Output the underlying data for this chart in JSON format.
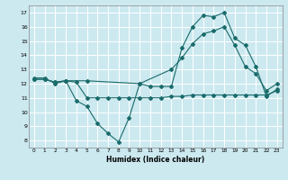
{
  "xlabel": "Humidex (Indice chaleur)",
  "bg_color": "#cce9f0",
  "line_color": "#1a6b6b",
  "grid_color": "#ffffff",
  "xlim": [
    -0.5,
    23.5
  ],
  "ylim": [
    7.5,
    17.5
  ],
  "yticks": [
    8,
    9,
    10,
    11,
    12,
    13,
    14,
    15,
    16,
    17
  ],
  "xticks": [
    0,
    1,
    2,
    3,
    4,
    5,
    6,
    7,
    8,
    9,
    10,
    11,
    12,
    13,
    14,
    15,
    16,
    17,
    18,
    19,
    20,
    21,
    22,
    23
  ],
  "line1_x": [
    0,
    1,
    2,
    3,
    4,
    5,
    6,
    7,
    8,
    9,
    10,
    11,
    12,
    13,
    14,
    15,
    16,
    17,
    18,
    19,
    20,
    21,
    22,
    23
  ],
  "line1_y": [
    12.4,
    12.4,
    12.0,
    12.2,
    10.8,
    10.4,
    9.2,
    8.5,
    7.9,
    9.6,
    12.0,
    11.8,
    11.8,
    11.8,
    14.5,
    16.0,
    16.8,
    16.7,
    17.0,
    15.2,
    14.7,
    13.2,
    11.1,
    11.6
  ],
  "line2_x": [
    0,
    1,
    2,
    3,
    4,
    5,
    6,
    7,
    8,
    9,
    10,
    11,
    12,
    13,
    14,
    15,
    16,
    17,
    18,
    19,
    20,
    21,
    22,
    23
  ],
  "line2_y": [
    12.3,
    12.3,
    12.1,
    12.2,
    12.1,
    11.0,
    11.0,
    11.0,
    11.0,
    11.0,
    11.0,
    11.0,
    11.0,
    11.1,
    11.1,
    11.2,
    11.2,
    11.2,
    11.2,
    11.2,
    11.2,
    11.2,
    11.2,
    11.5
  ],
  "line3_x": [
    0,
    1,
    2,
    3,
    5,
    10,
    13,
    14,
    15,
    16,
    17,
    18,
    19,
    20,
    21,
    22,
    23
  ],
  "line3_y": [
    12.3,
    12.3,
    12.1,
    12.2,
    12.2,
    12.0,
    13.0,
    13.8,
    14.8,
    15.5,
    15.7,
    16.0,
    14.7,
    13.2,
    12.7,
    11.5,
    12.0
  ]
}
